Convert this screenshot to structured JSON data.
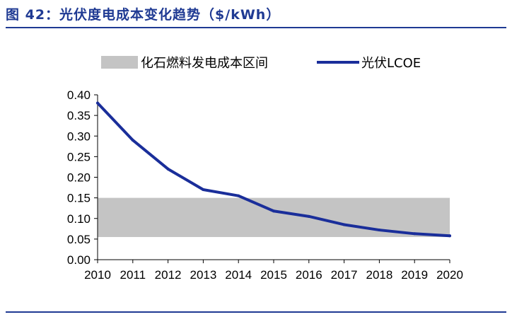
{
  "figure": {
    "title": "图 42：光伏度电成本变化趋势（$/kWh）"
  },
  "chart_data": {
    "type": "line",
    "x": [
      2010,
      2011,
      2012,
      2013,
      2014,
      2015,
      2016,
      2017,
      2018,
      2019,
      2020
    ],
    "series": [
      {
        "name": "光伏LCOE",
        "values": [
          0.38,
          0.29,
          0.22,
          0.17,
          0.155,
          0.118,
          0.105,
          0.085,
          0.072,
          0.063,
          0.058
        ],
        "color": "#1a2e9a"
      }
    ],
    "band": {
      "name": "化石燃料发电成本区间",
      "low": 0.055,
      "high": 0.15,
      "color": "#c4c4c4"
    },
    "ylim": [
      0,
      0.4
    ],
    "yticks": [
      "0.00",
      "0.05",
      "0.10",
      "0.15",
      "0.20",
      "0.25",
      "0.30",
      "0.35",
      "0.40"
    ],
    "xticks": [
      "2010",
      "2011",
      "2012",
      "2013",
      "2014",
      "2015",
      "2016",
      "2017",
      "2018",
      "2019",
      "2020"
    ],
    "xlabel": "",
    "ylabel": "",
    "grid": false,
    "legend": "top-center"
  }
}
